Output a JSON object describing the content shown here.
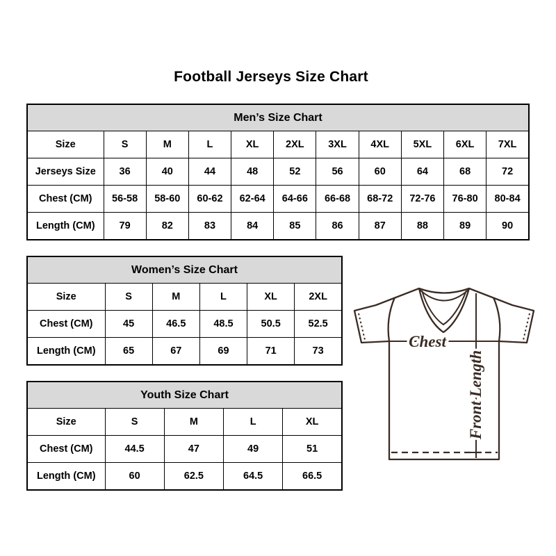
{
  "page": {
    "title": "Football Jerseys Size Chart"
  },
  "colors": {
    "background": "#ffffff",
    "table_border": "#000000",
    "table_header_bg": "#d9d9d9",
    "text": "#000000",
    "diagram_line": "#3a2b23"
  },
  "tables": [
    {
      "id": "mens",
      "title": "Men’s Size Chart",
      "rows": [
        [
          "Size",
          "S",
          "M",
          "L",
          "XL",
          "2XL",
          "3XL",
          "4XL",
          "5XL",
          "6XL",
          "7XL"
        ],
        [
          "Jerseys Size",
          "36",
          "40",
          "44",
          "48",
          "52",
          "56",
          "60",
          "64",
          "68",
          "72"
        ],
        [
          "Chest (CM)",
          "56-58",
          "58-60",
          "60-62",
          "62-64",
          "64-66",
          "66-68",
          "68-72",
          "72-76",
          "76-80",
          "80-84"
        ],
        [
          "Length (CM)",
          "79",
          "82",
          "83",
          "84",
          "85",
          "86",
          "87",
          "88",
          "89",
          "90"
        ]
      ]
    },
    {
      "id": "womens",
      "title": "Women’s Size Chart",
      "rows": [
        [
          "Size",
          "S",
          "M",
          "L",
          "XL",
          "2XL"
        ],
        [
          "Chest (CM)",
          "45",
          "46.5",
          "48.5",
          "50.5",
          "52.5"
        ],
        [
          "Length (CM)",
          "65",
          "67",
          "69",
          "71",
          "73"
        ]
      ]
    },
    {
      "id": "youth",
      "title": "Youth Size Chart",
      "rows": [
        [
          "Size",
          "S",
          "M",
          "L",
          "XL"
        ],
        [
          "Chest (CM)",
          "44.5",
          "47",
          "49",
          "51"
        ],
        [
          "Length (CM)",
          "60",
          "62.5",
          "64.5",
          "66.5"
        ]
      ]
    }
  ],
  "diagram": {
    "chest_label": "Chest",
    "front_length_label": "Front Length"
  }
}
